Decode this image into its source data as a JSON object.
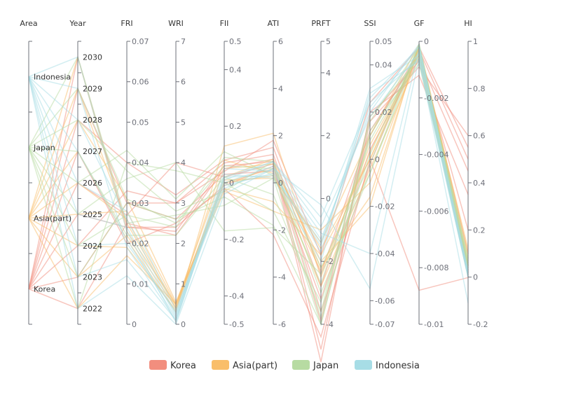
{
  "chart_data": {
    "type": "parallel",
    "title": "",
    "legend_position": "bottom",
    "axes": [
      {
        "name": "Area",
        "type": "category",
        "categories": [
          "Korea",
          "Asia(part)",
          "Japan",
          "Indonesia"
        ]
      },
      {
        "name": "Year",
        "type": "category",
        "categories": [
          "2022",
          "2023",
          "2024",
          "2025",
          "2026",
          "2027",
          "2028",
          "2029",
          "2030"
        ]
      },
      {
        "name": "FRI",
        "type": "value",
        "min": 0,
        "max": 0.07,
        "ticks": [
          "0",
          "0.01",
          "0.02",
          "0.03",
          "0.04",
          "0.05",
          "0.06",
          "0.07"
        ]
      },
      {
        "name": "WRI",
        "type": "value",
        "min": 0,
        "max": 7,
        "ticks": [
          "0",
          "1",
          "2",
          "3",
          "4",
          "5",
          "6",
          "7"
        ]
      },
      {
        "name": "FII",
        "type": "value",
        "min": -0.5,
        "max": 0.5,
        "ticks": [
          "-0.5",
          "-0.4",
          "-0.2",
          "0",
          "0.2",
          "0.4",
          "0.5"
        ]
      },
      {
        "name": "ATI",
        "type": "value",
        "min": -6,
        "max": 6,
        "ticks": [
          "-6",
          "-4",
          "-2",
          "0",
          "2",
          "4",
          "6"
        ]
      },
      {
        "name": "PRFT",
        "type": "value",
        "min": -4,
        "max": 5,
        "ticks": [
          "-4",
          "-2",
          "0",
          "2",
          "4",
          "5"
        ]
      },
      {
        "name": "SSI",
        "type": "value",
        "min": -0.07,
        "max": 0.05,
        "ticks": [
          "-0.07",
          "-0.06",
          "-0.04",
          "-0.02",
          "0",
          "0.02",
          "0.04",
          "0.05"
        ]
      },
      {
        "name": "GF",
        "type": "value",
        "min": -0.01,
        "max": 0,
        "ticks": [
          "-0.01",
          "-0.008",
          "-0.006",
          "-0.004",
          "-0.002",
          "0"
        ]
      },
      {
        "name": "HI",
        "type": "value",
        "min": -0.2,
        "max": 1,
        "ticks": [
          "-0.2",
          "0",
          "0.2",
          "0.4",
          "0.6",
          "0.8",
          "1"
        ]
      }
    ],
    "series": [
      {
        "name": "Korea",
        "color": "#f28e7e",
        "data": [
          [
            "Korea",
            "2022",
            0.025,
            2.2,
            0.05,
            1.0,
            -3.6,
            -0.002,
            -0.0002,
            0.55
          ],
          [
            "Korea",
            "2023",
            0.03,
            2.6,
            0.03,
            0.5,
            -3.2,
            0.004,
            -0.0006,
            0.45
          ],
          [
            "Korea",
            "2024",
            0.033,
            3.0,
            0.07,
            1.2,
            -2.8,
            0.01,
            -0.0003,
            0.5
          ],
          [
            "Korea",
            "2025",
            0.024,
            2.3,
            0.06,
            0.9,
            -4.8,
            0.016,
            -0.0009,
            0.6
          ],
          [
            "Korea",
            "2026",
            0.027,
            4.0,
            0.02,
            0.8,
            -5.2,
            0.02,
            -0.0012,
            0.35
          ],
          [
            "Korea",
            "2027",
            0.02,
            2.5,
            -0.02,
            -2.2,
            -4.4,
            0.0,
            -0.0088,
            -0.002
          ],
          [
            "Korea",
            "2028",
            0.04,
            3.2,
            0.08,
            1.5,
            -2.4,
            0.012,
            -0.0005,
            0.2
          ],
          [
            "Korea",
            "2029",
            0.03,
            3.0,
            0.04,
            1.8,
            -1.8,
            0.024,
            -0.0002,
            0.1
          ],
          [
            "Korea",
            "2030",
            0.024,
            2.4,
            -0.01,
            0.7,
            -3.9,
            0.018,
            -0.0007,
            0.05
          ]
        ]
      },
      {
        "name": "Asia(part)",
        "color": "#f9be6a",
        "data": [
          [
            "Asia(part)",
            "2022",
            0.017,
            0.5,
            0.05,
            0.8,
            -2.0,
            -0.02,
            -0.0001,
            0.1
          ],
          [
            "Asia(part)",
            "2023",
            0.022,
            0.4,
            0.02,
            1.0,
            -2.2,
            -0.016,
            -0.0002,
            0.08
          ],
          [
            "Asia(part)",
            "2024",
            0.019,
            0.35,
            0.0,
            0.6,
            -1.6,
            0.0,
            -0.0004,
            0.05
          ],
          [
            "Asia(part)",
            "2025",
            0.028,
            0.5,
            -0.03,
            -1.2,
            -1.0,
            -0.01,
            -0.0003,
            0.03
          ],
          [
            "Asia(part)",
            "2026",
            0.026,
            0.45,
            0.01,
            0.2,
            -1.4,
            0.01,
            -0.0001,
            0.06
          ],
          [
            "Asia(part)",
            "2027",
            0.021,
            0.3,
            0.13,
            2.1,
            -2.5,
            0.006,
            -0.0005,
            0.0
          ],
          [
            "Asia(part)",
            "2028",
            0.031,
            0.55,
            -0.02,
            -0.8,
            -1.8,
            0.0,
            -0.0002,
            0.02
          ],
          [
            "Asia(part)",
            "2029",
            0.025,
            0.4,
            0.08,
            0.4,
            -2.8,
            -0.004,
            -0.0006,
            0.04
          ],
          [
            "Asia(part)",
            "2030",
            0.023,
            0.5,
            0.0,
            0.3,
            -2.3,
            0.003,
            -0.0003,
            0.12
          ]
        ]
      },
      {
        "name": "Japan",
        "color": "#b7dba2",
        "data": [
          [
            "Japan",
            "2022",
            0.04,
            3.8,
            0.0,
            -1.2,
            -3.3,
            0.002,
            -0.0002,
            0.08
          ],
          [
            "Japan",
            "2023",
            0.03,
            2.6,
            -0.05,
            -1.8,
            -4.0,
            0.01,
            -0.0004,
            0.06
          ],
          [
            "Japan",
            "2024",
            0.027,
            2.4,
            0.09,
            0.9,
            -3.0,
            -0.006,
            -0.0003,
            0.02
          ],
          [
            "Japan",
            "2025",
            0.036,
            4.0,
            -0.17,
            -1.9,
            -2.4,
            -0.006,
            -0.0001,
            0.05
          ],
          [
            "Japan",
            "2026",
            0.043,
            3.1,
            0.11,
            0.3,
            -2.7,
            0.008,
            -0.0005,
            0.03
          ],
          [
            "Japan",
            "2027",
            0.022,
            2.2,
            0.02,
            -0.5,
            -3.6,
            0.016,
            -0.0002,
            0.07
          ],
          [
            "Japan",
            "2028",
            0.038,
            2.8,
            -0.03,
            0.9,
            -3.8,
            0.018,
            -0.0006,
            0.01
          ],
          [
            "Japan",
            "2029",
            0.031,
            2.5,
            0.06,
            0.6,
            -2.2,
            -0.002,
            -0.0001,
            0.05
          ],
          [
            "Japan",
            "2030",
            0.025,
            2.7,
            -0.08,
            0.2,
            -4.0,
            0.012,
            -0.0008,
            0.04
          ]
        ]
      },
      {
        "name": "Indonesia",
        "color": "#a7dde6",
        "data": [
          [
            "Indonesia",
            "2022",
            0.012,
            0.0,
            -0.04,
            0.6,
            -0.2,
            -0.055,
            -0.0006,
            -0.11
          ],
          [
            "Indonesia",
            "2023",
            0.016,
            0.1,
            0.02,
            0.9,
            -0.9,
            0.018,
            -0.0004,
            0.0
          ],
          [
            "Indonesia",
            "2024",
            0.02,
            0.3,
            -0.01,
            0.4,
            -1.4,
            0.022,
            -0.0002,
            0.02
          ],
          [
            "Indonesia",
            "2025",
            0.024,
            0.2,
            0.03,
            0.2,
            -2.0,
            0.028,
            -0.0007,
            0.0
          ],
          [
            "Indonesia",
            "2026",
            0.028,
            0.35,
            0.0,
            0.7,
            -1.1,
            -0.04,
            -0.0003,
            0.03
          ],
          [
            "Indonesia",
            "2027",
            0.021,
            0.15,
            0.05,
            0.5,
            -1.7,
            0.03,
            -0.0005,
            0.01
          ],
          [
            "Indonesia",
            "2028",
            0.026,
            0.25,
            -0.02,
            0.6,
            -1.3,
            0.02,
            -0.0001,
            0.02
          ],
          [
            "Indonesia",
            "2029",
            0.019,
            0.1,
            0.01,
            0.9,
            -0.6,
            0.024,
            -0.0006,
            0.0
          ],
          [
            "Indonesia",
            "2030",
            0.023,
            0.05,
            0.02,
            0.3,
            -1.5,
            0.026,
            -0.0002,
            0.01
          ]
        ]
      }
    ]
  }
}
